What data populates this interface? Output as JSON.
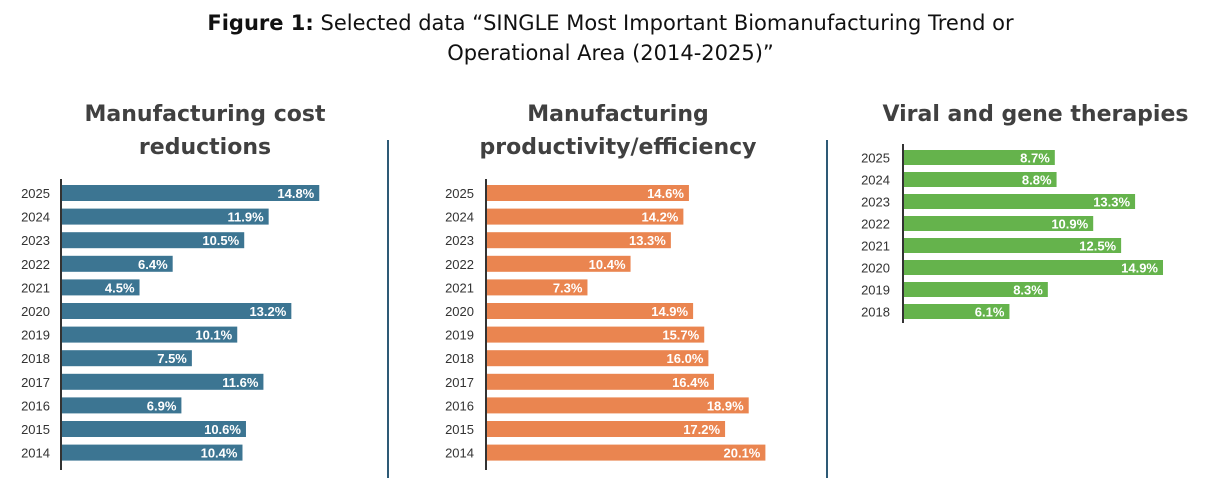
{
  "figure": {
    "title_bold": "Figure 1:",
    "title_line1": " Selected data “SINGLE Most Important Biomanufacturing Trend or",
    "title_line2": "Operational Area (2014-2025)”"
  },
  "chart_data": [
    {
      "type": "bar",
      "orientation": "horizontal",
      "title": "Manufacturing cost reductions",
      "title_line1": "Manufacturing cost",
      "title_line2": "reductions",
      "color": "#3c7592",
      "categories": [
        "2025",
        "2024",
        "2023",
        "2022",
        "2021",
        "2020",
        "2019",
        "2018",
        "2017",
        "2016",
        "2015",
        "2014"
      ],
      "values": [
        14.8,
        11.9,
        10.5,
        6.4,
        4.5,
        13.2,
        10.1,
        7.5,
        11.6,
        6.9,
        10.6,
        10.4
      ],
      "labels": [
        "14.8%",
        "11.9%",
        "10.5%",
        "6.4%",
        "4.5%",
        "13.2%",
        "10.1%",
        "7.5%",
        "11.6%",
        "6.9%",
        "10.6%",
        "10.4%"
      ],
      "xlabel": "",
      "ylabel": "",
      "unit": "%",
      "grid": false
    },
    {
      "type": "bar",
      "orientation": "horizontal",
      "title": "Manufacturing productivity/efficiency",
      "title_line1": "Manufacturing",
      "title_line2": "productivity/efficiency",
      "color": "#ea8550",
      "categories": [
        "2025",
        "2024",
        "2023",
        "2022",
        "2021",
        "2020",
        "2019",
        "2018",
        "2017",
        "2016",
        "2015",
        "2014"
      ],
      "values": [
        14.6,
        14.2,
        13.3,
        10.4,
        7.3,
        14.9,
        15.7,
        16.0,
        16.4,
        18.9,
        17.2,
        20.1
      ],
      "labels": [
        "14.6%",
        "14.2%",
        "13.3%",
        "10.4%",
        "7.3%",
        "14.9%",
        "15.7%",
        "16.0%",
        "16.4%",
        "18.9%",
        "17.2%",
        "20.1%"
      ],
      "xlabel": "",
      "ylabel": "",
      "unit": "%",
      "grid": false
    },
    {
      "type": "bar",
      "orientation": "horizontal",
      "title": "Viral and gene therapies",
      "title_line1": "Viral and gene therapies",
      "title_line2": "",
      "color": "#65b34c",
      "categories": [
        "2025",
        "2024",
        "2023",
        "2022",
        "2021",
        "2020",
        "2019",
        "2018"
      ],
      "values": [
        8.7,
        8.8,
        13.3,
        10.9,
        12.5,
        14.9,
        8.3,
        6.1
      ],
      "labels": [
        "8.7%",
        "8.8%",
        "13.3%",
        "10.9%",
        "12.5%",
        "14.9%",
        "8.3%",
        "6.1%"
      ],
      "xlabel": "",
      "ylabel": "",
      "unit": "%",
      "grid": false
    }
  ]
}
